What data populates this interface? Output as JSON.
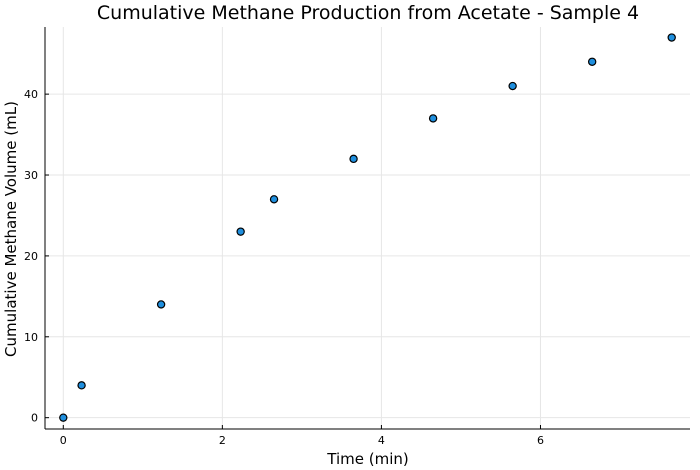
{
  "chart_data": {
    "type": "scatter",
    "title": "Cumulative Methane Production from Acetate - Sample 4",
    "xlabel": "Time (min)",
    "ylabel": "Cumulative Methane Volume (mL)",
    "xlim": [
      -0.23,
      7.88
    ],
    "ylim": [
      -1.4,
      48.3
    ],
    "xticks": [
      0,
      2,
      4,
      6
    ],
    "yticks": [
      0,
      10,
      20,
      30,
      40
    ],
    "grid": true,
    "legend": "none",
    "marker_color": "#1f8fde",
    "series": [
      {
        "x": [
          0,
          0.23,
          1.23,
          2.23,
          2.65,
          3.65,
          4.65,
          5.65,
          6.65,
          7.65
        ],
        "y": [
          0,
          4,
          14,
          23,
          27,
          32,
          37,
          41,
          44,
          47
        ]
      }
    ]
  }
}
